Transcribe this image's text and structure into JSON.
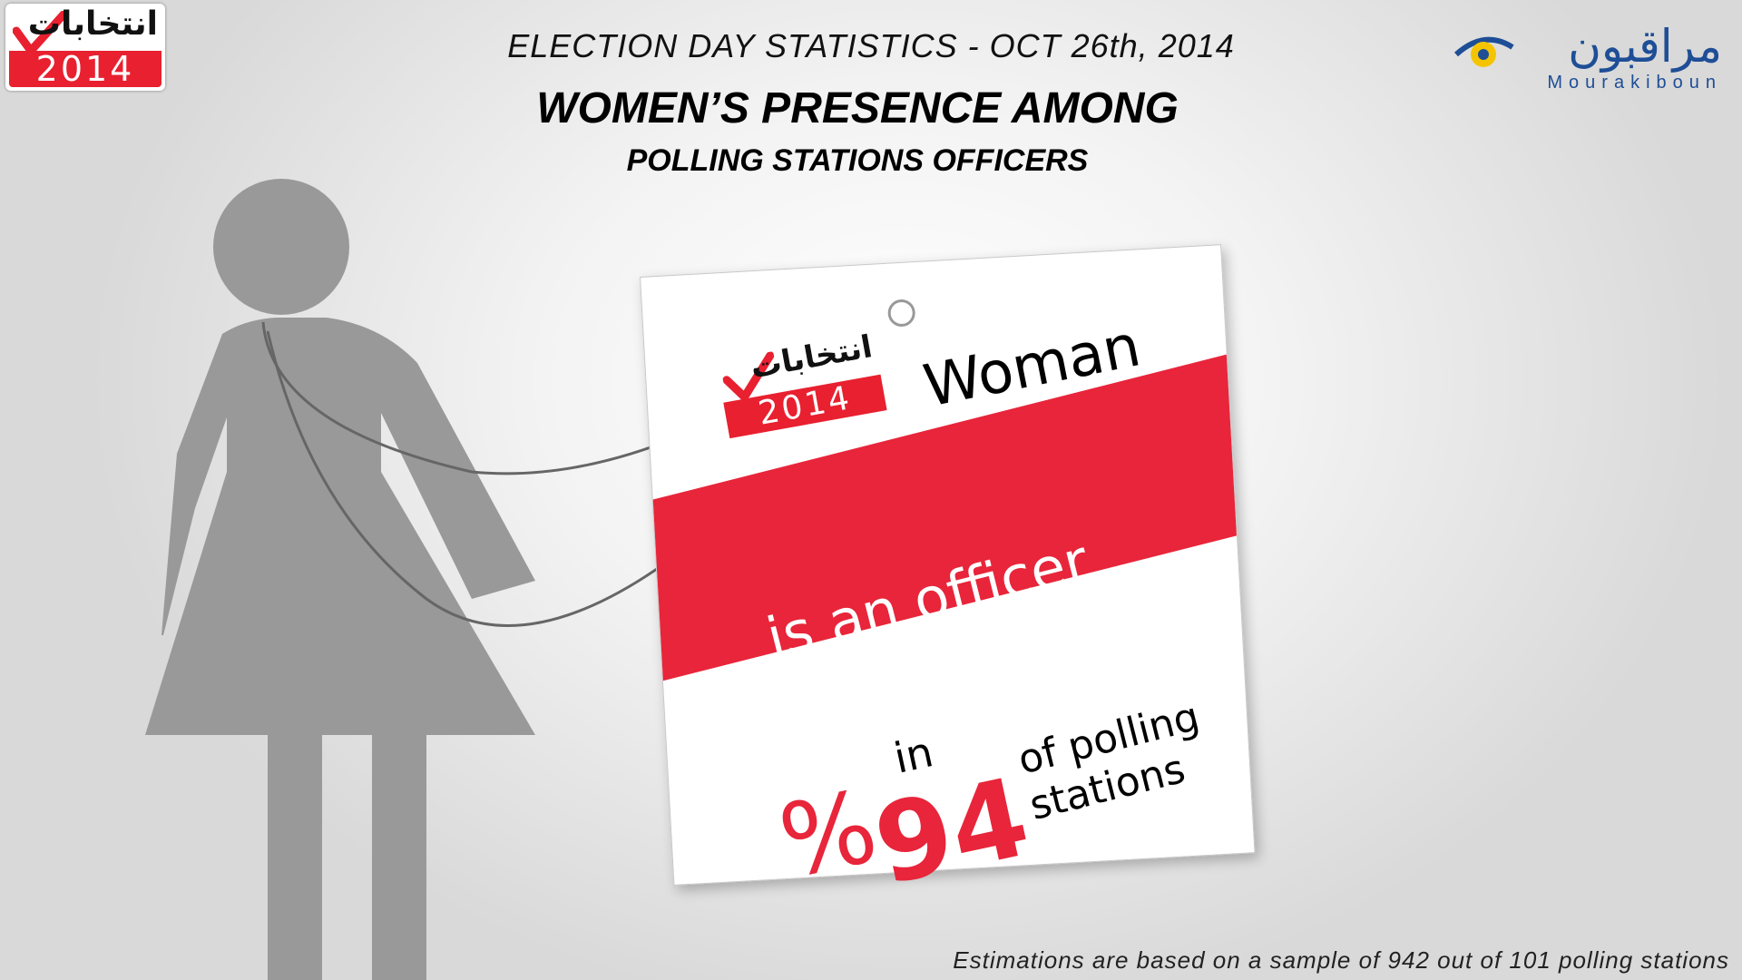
{
  "header": {
    "line1": "ELECTION DAY STATISTICS - OCT 26th, 2014",
    "line2": "WOMEN’S PRESENCE AMONG",
    "line3": "POLLING STATIONS OFFICERS"
  },
  "logo_left": {
    "arabic": "انتخابات",
    "year": "2014"
  },
  "logo_right": {
    "arabic": "مراقبون",
    "latin": "Mourakiboun",
    "icon": "eye-icon"
  },
  "card": {
    "logo_arabic": "انتخابات",
    "logo_year": "2014",
    "subject": "Woman",
    "role": "is an officer",
    "in": "in",
    "percent_symbol": "%",
    "percent_value": "94",
    "suffix_line1": "of polling",
    "suffix_line2": "stations"
  },
  "stat": {
    "women_officer_share_percent": 94
  },
  "footnote": "Estimations are based on a sample of 942 out of 101 polling stations",
  "colors": {
    "accent_red": "#e8253a",
    "brand_blue": "#1e4e96",
    "figure_gray": "#999999",
    "eye_yellow": "#f5c400"
  }
}
